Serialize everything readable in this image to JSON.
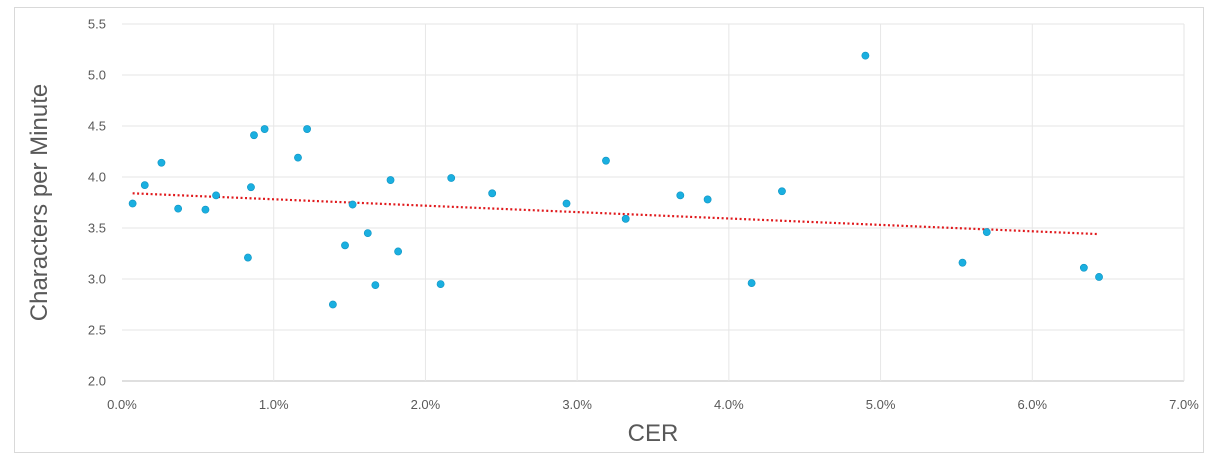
{
  "chart_data": {
    "type": "scatter",
    "xlabel": "CER",
    "ylabel": "Characters per Minute",
    "xlim": [
      0,
      0.07
    ],
    "ylim": [
      2.0,
      5.5
    ],
    "x_ticks": [
      0,
      0.01,
      0.02,
      0.03,
      0.04,
      0.05,
      0.06,
      0.07
    ],
    "x_tick_labels": [
      "0.0%",
      "1.0%",
      "2.0%",
      "3.0%",
      "4.0%",
      "5.0%",
      "6.0%",
      "7.0%"
    ],
    "y_ticks": [
      2.0,
      2.5,
      3.0,
      3.5,
      4.0,
      4.5,
      5.0,
      5.5
    ],
    "y_tick_labels": [
      "2.0",
      "2.5",
      "3.0",
      "3.5",
      "4.0",
      "4.5",
      "5.0",
      "5.5"
    ],
    "grid": true,
    "legend": "none",
    "series": [
      {
        "marker_color": "#1aafe0",
        "x": [
          0.0007,
          0.0015,
          0.0026,
          0.0037,
          0.0055,
          0.0062,
          0.0083,
          0.0085,
          0.0087,
          0.0094,
          0.0116,
          0.0122,
          0.0139,
          0.0147,
          0.0152,
          0.0162,
          0.0167,
          0.0177,
          0.0182,
          0.021,
          0.0217,
          0.0244,
          0.0293,
          0.0319,
          0.0332,
          0.0368,
          0.0386,
          0.0415,
          0.0435,
          0.049,
          0.0554,
          0.057,
          0.0634,
          0.0644
        ],
        "y": [
          3.74,
          3.92,
          4.14,
          3.69,
          3.68,
          3.82,
          3.21,
          3.9,
          4.41,
          4.47,
          4.19,
          4.47,
          2.75,
          3.33,
          3.73,
          3.45,
          2.94,
          3.97,
          3.27,
          2.95,
          3.99,
          3.84,
          3.74,
          4.16,
          3.59,
          3.82,
          3.78,
          2.96,
          3.86,
          5.19,
          3.16,
          3.46,
          3.11,
          3.02
        ]
      }
    ],
    "trendline": {
      "type": "linear",
      "color": "#e0191c",
      "x": [
        0.0007,
        0.0644
      ],
      "y": [
        3.84,
        3.44
      ]
    }
  }
}
